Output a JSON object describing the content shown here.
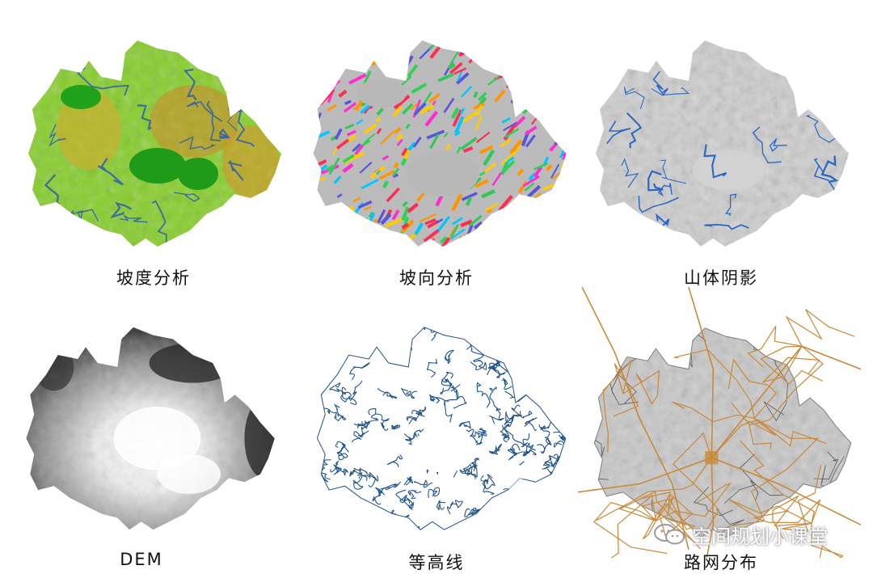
{
  "panels": [
    {
      "caption": "坡度分析",
      "style": "slope"
    },
    {
      "caption": "坡向分析",
      "style": "aspect"
    },
    {
      "caption": "山体阴影",
      "style": "hillshade"
    },
    {
      "caption": "DEM",
      "style": "dem"
    },
    {
      "caption": "等高线",
      "style": "contour"
    },
    {
      "caption": "路网分布",
      "style": "road"
    }
  ],
  "watermark": {
    "text": "空间规划小课堂",
    "icon": "wechat-icon"
  },
  "colors": {
    "slope_green": "#7ccf1f",
    "slope_flat": "#22a11a",
    "slope_steep": "#d9771f",
    "river_blue": "#2f5fa8",
    "contour_blue": "#1a4f8a",
    "hillshade_gray": "#c9c9c9",
    "road_orange": "#c88a3a"
  }
}
